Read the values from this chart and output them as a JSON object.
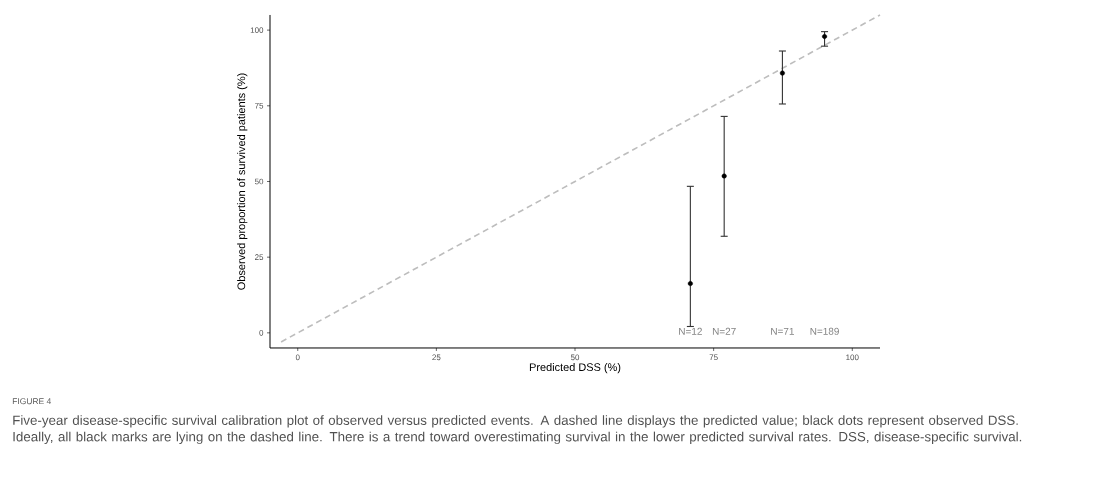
{
  "chart_data": {
    "type": "scatter",
    "xlabel": "Predicted DSS (%)",
    "ylabel": "Observed proportion of survived patients (%)",
    "xlim": [
      -5,
      105
    ],
    "ylim": [
      -5,
      105
    ],
    "xticks": [
      0,
      25,
      50,
      75,
      100
    ],
    "yticks": [
      0,
      25,
      50,
      75,
      100
    ],
    "series": [
      {
        "color": "#000000",
        "marker": "circle",
        "x": [
          70.8,
          76.9,
          87.4,
          95.0
        ],
        "values": [
          16.3,
          51.8,
          85.8,
          97.9
        ],
        "errors": [
          [
            2.1,
            48.4
          ],
          [
            31.9,
            71.5
          ],
          [
            75.6,
            93.1
          ],
          [
            94.7,
            99.5
          ]
        ]
      },
      {
        "type": "line",
        "color": "#bdbdbd",
        "marker": "none",
        "line_style": "dashed",
        "x": [
          -3,
          105
        ],
        "values": [
          -3,
          105
        ]
      }
    ],
    "annotations": [
      "N=12",
      "N=27",
      "N=71",
      "N=189",
      "FIGURE 4",
      "Five-year disease-specific survival calibration plot of observed versus predicted events. A dashed line displays the predicted value; black dots represent observed DSS. Ideally, all black marks are lying on the dashed line. There is a trend toward overestimating survival in the lower predicted survival rates. DSS, disease-specific survival."
    ]
  }
}
